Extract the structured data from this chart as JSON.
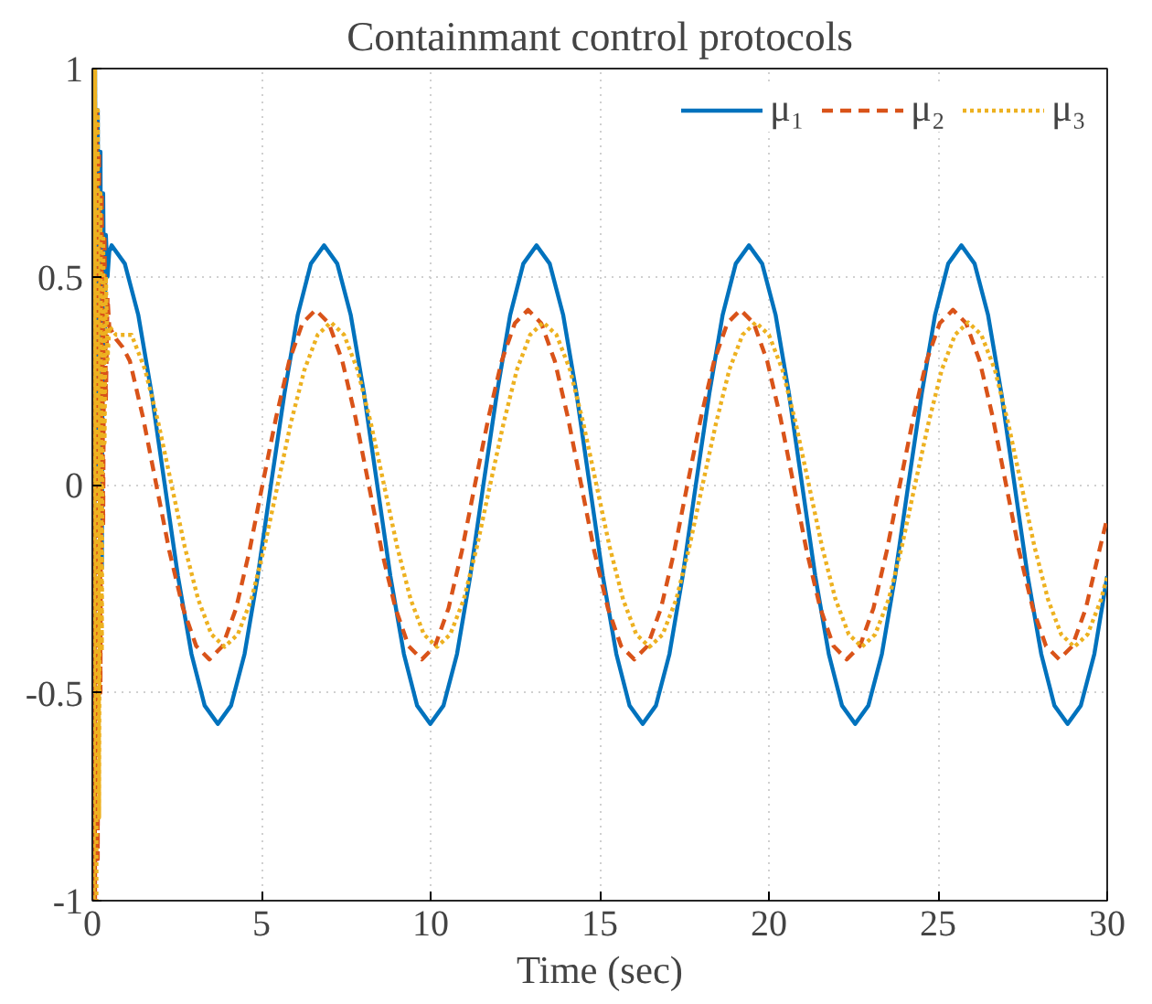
{
  "chart_data": {
    "type": "line",
    "title": "Containmant control protocols",
    "xlabel": "Time (sec)",
    "xlim": [
      0,
      30
    ],
    "xticks": [
      0,
      5,
      10,
      15,
      20,
      25,
      30
    ],
    "ylim": [
      -1,
      1
    ],
    "yticks": [
      -1,
      -0.5,
      0,
      0.5,
      1
    ],
    "grid": true,
    "legend": "top right",
    "series": [
      {
        "name": "μ₁",
        "color": "#0072bd",
        "line_style": "solid",
        "x": [
          0,
          0.04,
          0.08,
          0.12,
          0.16,
          0.2,
          0.24,
          0.28,
          0.32,
          0.36,
          0.4,
          0.45,
          0.5,
          0.57,
          0.96,
          1.36,
          1.75,
          2.14,
          2.53,
          2.93,
          3.32,
          3.71,
          4.1,
          4.5,
          4.89,
          5.28,
          5.68,
          6.07,
          6.46,
          6.85,
          7.24,
          7.64,
          8.03,
          8.42,
          8.81,
          9.21,
          9.6,
          9.99,
          10.38,
          10.78,
          11.17,
          11.56,
          11.96,
          12.35,
          12.74,
          13.13,
          13.52,
          13.92,
          14.31,
          14.7,
          15.09,
          15.49,
          15.88,
          16.27,
          16.66,
          17.06,
          17.45,
          17.84,
          18.24,
          18.63,
          19.02,
          19.41,
          19.8,
          20.2,
          20.59,
          20.98,
          21.37,
          21.77,
          22.16,
          22.55,
          22.94,
          23.34,
          23.73,
          24.12,
          24.52,
          24.91,
          25.3,
          25.69,
          26.08,
          26.48,
          26.87,
          27.26,
          27.65,
          28.05,
          28.44,
          28.83,
          29.22,
          29.62,
          30
        ],
        "values": [
          1,
          -1,
          1,
          null,
          0.9,
          null,
          0.8,
          -0.2,
          0.7,
          0.3,
          0.6,
          0.5,
          0.56,
          0.575,
          0.531,
          0.407,
          0.22,
          0,
          -0.22,
          -0.407,
          -0.531,
          -0.575,
          -0.531,
          -0.407,
          -0.22,
          0,
          0.22,
          0.407,
          0.531,
          0.575,
          0.531,
          0.407,
          0.22,
          0,
          -0.22,
          -0.407,
          -0.531,
          -0.575,
          -0.531,
          -0.407,
          -0.22,
          0,
          0.22,
          0.407,
          0.531,
          0.575,
          0.531,
          0.407,
          0.22,
          0,
          -0.22,
          -0.407,
          -0.531,
          -0.575,
          -0.531,
          -0.407,
          -0.22,
          0,
          0.22,
          0.407,
          0.531,
          0.575,
          0.531,
          0.407,
          0.22,
          0,
          -0.22,
          -0.407,
          -0.531,
          -0.575,
          -0.531,
          -0.407,
          -0.22,
          0,
          0.22,
          0.407,
          0.531,
          0.575,
          0.531,
          0.407,
          0.22,
          0,
          -0.22,
          -0.407,
          -0.531,
          -0.575,
          -0.531,
          -0.407,
          -0.22
        ]
      },
      {
        "name": "μ₂",
        "color": "#d95319",
        "line_style": "dashed",
        "x": [
          0,
          0.04,
          0.08,
          0.12,
          0.16,
          0.2,
          0.24,
          0.28,
          0.32,
          0.36,
          0.4,
          0.45,
          0.5,
          0.7,
          0.9,
          1.11,
          1.5,
          1.89,
          2.28,
          2.68,
          3.07,
          3.46,
          3.85,
          4.25,
          4.64,
          5.03,
          5.43,
          5.82,
          6.21,
          6.6,
          6.99,
          7.39,
          7.78,
          8.17,
          8.56,
          8.96,
          9.35,
          9.74,
          10.13,
          10.53,
          10.92,
          11.31,
          11.71,
          12.1,
          12.49,
          12.88,
          13.27,
          13.67,
          14.06,
          14.45,
          14.84,
          15.24,
          15.63,
          16.02,
          16.41,
          16.81,
          17.2,
          17.59,
          17.99,
          18.38,
          18.77,
          19.16,
          19.55,
          19.95,
          20.34,
          20.73,
          21.12,
          21.52,
          21.91,
          22.3,
          22.69,
          23.09,
          23.48,
          23.87,
          24.27,
          24.66,
          25.05,
          25.44,
          25.83,
          26.23,
          26.62,
          27.01,
          27.4,
          27.8,
          28.19,
          28.58,
          28.97,
          29.37,
          29.76,
          30
        ],
        "values": [
          -1,
          1,
          -1,
          0.9,
          -0.9,
          0.8,
          -0.5,
          0.7,
          -0.1,
          0.6,
          0.2,
          0.45,
          0.38,
          0.35,
          0.33,
          0.297,
          0.161,
          0,
          -0.161,
          -0.297,
          -0.388,
          -0.42,
          -0.388,
          -0.297,
          -0.161,
          0,
          0.161,
          0.297,
          0.388,
          0.42,
          0.388,
          0.297,
          0.161,
          0,
          -0.161,
          -0.297,
          -0.388,
          -0.42,
          -0.388,
          -0.297,
          -0.161,
          0,
          0.161,
          0.297,
          0.388,
          0.42,
          0.388,
          0.297,
          0.161,
          0,
          -0.161,
          -0.297,
          -0.388,
          -0.42,
          -0.388,
          -0.297,
          -0.161,
          0,
          0.161,
          0.297,
          0.388,
          0.42,
          0.388,
          0.297,
          0.161,
          0,
          -0.161,
          -0.297,
          -0.388,
          -0.42,
          -0.388,
          -0.297,
          -0.161,
          0,
          0.161,
          0.297,
          0.388,
          0.42,
          0.388,
          0.297,
          0.161,
          0,
          -0.161,
          -0.297,
          -0.388,
          -0.42,
          -0.388,
          -0.297,
          -0.161,
          -0.08
        ]
      },
      {
        "name": "μ₃",
        "color": "#edb120",
        "line_style": "dotted",
        "x": [
          0,
          0.04,
          0.08,
          0.12,
          0.16,
          0.2,
          0.24,
          0.28,
          0.32,
          0.36,
          0.4,
          0.45,
          0.5,
          0.7,
          0.9,
          1.16,
          1.56,
          1.95,
          2.34,
          2.73,
          3.13,
          3.52,
          3.91,
          4.3,
          4.7,
          5.09,
          5.48,
          5.87,
          6.27,
          6.66,
          7.05,
          7.44,
          7.84,
          8.23,
          8.62,
          9.01,
          9.41,
          9.8,
          10.19,
          10.58,
          10.98,
          11.37,
          11.76,
          12.16,
          12.55,
          12.94,
          13.33,
          13.72,
          14.12,
          14.51,
          14.9,
          15.29,
          15.69,
          16.08,
          16.47,
          16.86,
          17.26,
          17.65,
          18.04,
          18.44,
          18.83,
          19.22,
          19.61,
          20.0,
          20.4,
          20.79,
          21.18,
          21.57,
          21.97,
          22.36,
          22.75,
          23.14,
          23.54,
          23.93,
          24.32,
          24.72,
          25.11,
          25.5,
          25.89,
          26.28,
          26.68,
          27.07,
          27.46,
          27.85,
          28.25,
          28.64,
          29.03,
          29.42,
          29.82,
          30
        ],
        "values": [
          1,
          -1,
          1,
          -1,
          0.9,
          -0.8,
          0.7,
          -0.4,
          0.6,
          0.1,
          0.5,
          0.3,
          0.38,
          0.36,
          0.36,
          0.36,
          0.276,
          0.149,
          0,
          -0.149,
          -0.276,
          -0.36,
          -0.39,
          -0.36,
          -0.276,
          -0.149,
          0,
          0.149,
          0.276,
          0.36,
          0.39,
          0.36,
          0.276,
          0.149,
          0,
          -0.149,
          -0.276,
          -0.36,
          -0.39,
          -0.36,
          -0.276,
          -0.149,
          0,
          0.149,
          0.276,
          0.36,
          0.39,
          0.36,
          0.276,
          0.149,
          0,
          -0.149,
          -0.276,
          -0.36,
          -0.39,
          -0.36,
          -0.276,
          -0.149,
          0,
          0.149,
          0.276,
          0.36,
          0.39,
          0.36,
          0.276,
          0.149,
          0,
          -0.149,
          -0.276,
          -0.36,
          -0.39,
          -0.36,
          -0.276,
          -0.149,
          0,
          0.149,
          0.276,
          0.36,
          0.39,
          0.36,
          0.276,
          0.149,
          0,
          -0.149,
          -0.276,
          -0.36,
          -0.39,
          -0.36,
          -0.276,
          -0.22
        ]
      }
    ]
  }
}
